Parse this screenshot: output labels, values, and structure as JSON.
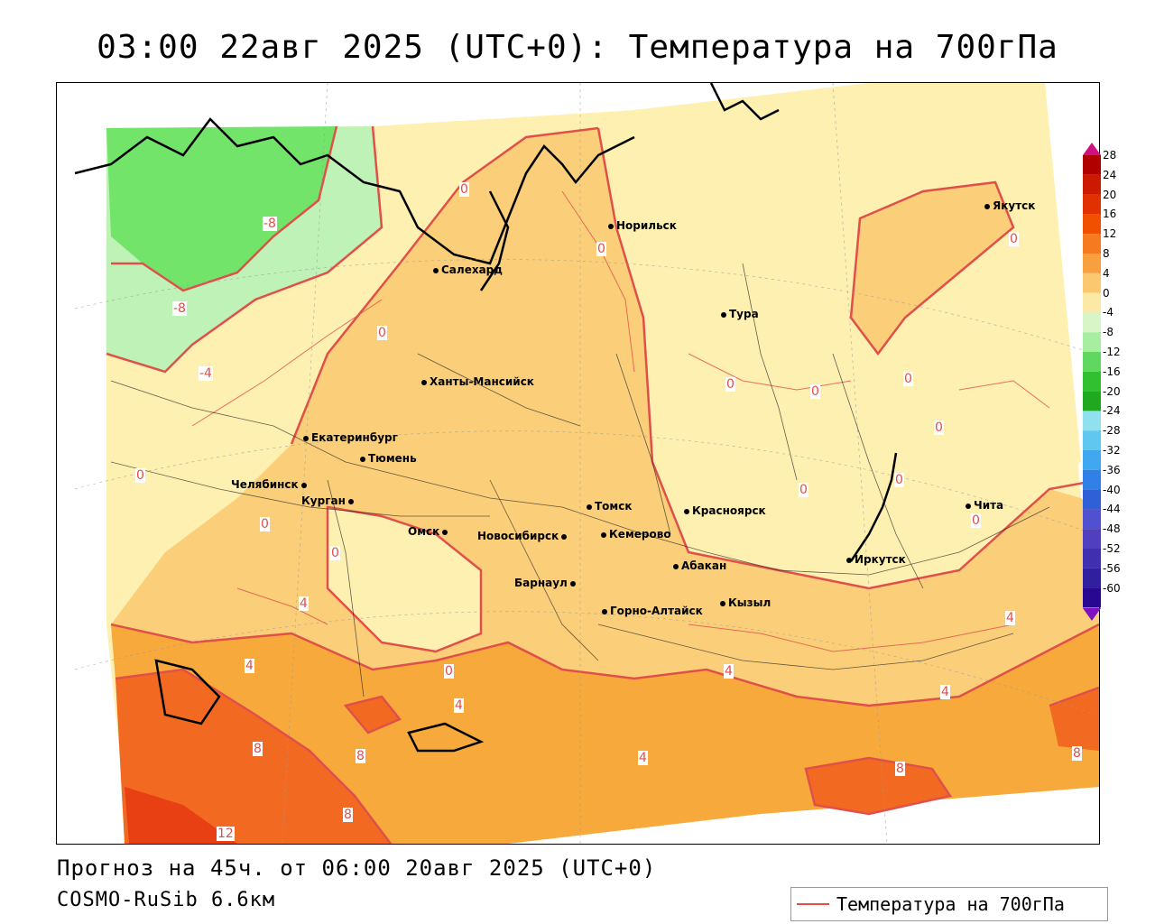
{
  "title": "03:00 22авг 2025 (UTC+0): Температура на 700гПа",
  "footer": {
    "forecast": "Прогноз на 45ч. от 06:00 20авг 2025 (UTC+0)",
    "model": "COSMO-RuSib 6.6км"
  },
  "legend": {
    "label": "Температура на 700гПа",
    "line_color": "#e0504a"
  },
  "cities": [
    {
      "name": "Норильск"
    },
    {
      "name": "Якутск"
    },
    {
      "name": "Салехард"
    },
    {
      "name": "Тура"
    },
    {
      "name": "Ханты-Мансийск"
    },
    {
      "name": "Екатеринбург"
    },
    {
      "name": "Тюмень"
    },
    {
      "name": "Челябинск"
    },
    {
      "name": "Курган"
    },
    {
      "name": "Омск"
    },
    {
      "name": "Томск"
    },
    {
      "name": "Красноярск"
    },
    {
      "name": "Новосибирск"
    },
    {
      "name": "Кемерово"
    },
    {
      "name": "Абакан"
    },
    {
      "name": "Барнаул"
    },
    {
      "name": "Иркутск"
    },
    {
      "name": "Чита"
    },
    {
      "name": "Горно-Алтайск"
    },
    {
      "name": "Кызыл"
    }
  ],
  "contour_labels": [
    "-8",
    "-8",
    "-4",
    "0",
    "0",
    "0",
    "0",
    "0",
    "0",
    "0",
    "0",
    "0",
    "0",
    "0",
    "0",
    "0",
    "0",
    "0",
    "4",
    "4",
    "4",
    "4",
    "4",
    "4",
    "4",
    "8",
    "8",
    "8",
    "8",
    "8",
    "12"
  ],
  "colorbar": {
    "ticks": [
      "28",
      "24",
      "20",
      "16",
      "12",
      "8",
      "4",
      "0",
      "-4",
      "-8",
      "-12",
      "-16",
      "-20",
      "-24",
      "-28",
      "-32",
      "-36",
      "-40",
      "-44",
      "-48",
      "-52",
      "-56",
      "-60"
    ],
    "colors": [
      "#b00000",
      "#cc1a00",
      "#e33000",
      "#f05000",
      "#f57a20",
      "#f8a040",
      "#fbc870",
      "#fde9a6",
      "#d8f5c8",
      "#a8eea0",
      "#60d860",
      "#30c030",
      "#20a820",
      "#90e0f0",
      "#60c8f0",
      "#40a8f0",
      "#3080e8",
      "#3060d8",
      "#5050d0",
      "#5040c0",
      "#4030b0",
      "#3020a0",
      "#280890"
    ]
  }
}
